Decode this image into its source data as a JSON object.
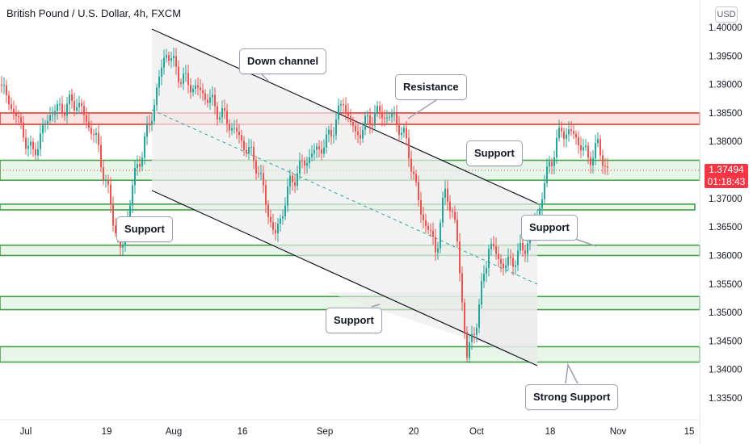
{
  "header": {
    "title": "British Pound / U.S. Dollar, 4h, FXCM",
    "currency_button": "USD"
  },
  "price_label": {
    "price": "1.37494",
    "countdown": "01:18:43",
    "color": "#f23645"
  },
  "annotations": {
    "down_channel": "Down channel",
    "resistance": "Resistance",
    "support_right_top": "Support",
    "support_left": "Support",
    "support_middle": "Support",
    "support_right": "Support",
    "strong_support": "Strong Support"
  },
  "colors": {
    "up": "#26a69a",
    "down": "#ef5350",
    "zone_green": "#43a047",
    "zone_red": "#e53935",
    "channel": "#131722"
  },
  "chart_data": {
    "type": "candlestick",
    "title": "British Pound / U.S. Dollar, 4h, FXCM",
    "ylim": [
      1.33,
      1.405
    ],
    "y_ticks": [
      "1.40000",
      "1.39500",
      "1.39000",
      "1.38500",
      "1.38000",
      "1.37500",
      "1.37000",
      "1.36500",
      "1.36000",
      "1.35500",
      "1.35000",
      "1.34500",
      "1.34000",
      "1.33500"
    ],
    "x_ticks": [
      "Jul",
      "19",
      "Aug",
      "16",
      "Sep",
      "20",
      "Oct",
      "18",
      "Nov",
      "15"
    ],
    "last_price": 1.37494,
    "approx_path": [
      {
        "x": "Jul 1",
        "y": 1.39
      },
      {
        "x": "Jul 5",
        "y": 1.384
      },
      {
        "x": "Jul 8",
        "y": 1.377
      },
      {
        "x": "Jul 12",
        "y": 1.388
      },
      {
        "x": "Jul 16",
        "y": 1.379
      },
      {
        "x": "Jul 20",
        "y": 1.362
      },
      {
        "x": "Jul 22",
        "y": 1.37
      },
      {
        "x": "Jul 26",
        "y": 1.383
      },
      {
        "x": "Jul 30",
        "y": 1.396
      },
      {
        "x": "Aug 3",
        "y": 1.39
      },
      {
        "x": "Aug 9",
        "y": 1.386
      },
      {
        "x": "Aug 13",
        "y": 1.382
      },
      {
        "x": "Aug 18",
        "y": 1.374
      },
      {
        "x": "Aug 20",
        "y": 1.362
      },
      {
        "x": "Aug 23",
        "y": 1.372
      },
      {
        "x": "Aug 27",
        "y": 1.376
      },
      {
        "x": "Sep 1",
        "y": 1.382
      },
      {
        "x": "Sep 3",
        "y": 1.387
      },
      {
        "x": "Sep 7",
        "y": 1.381
      },
      {
        "x": "Sep 10",
        "y": 1.384
      },
      {
        "x": "Sep 14",
        "y": 1.385
      },
      {
        "x": "Sep 17",
        "y": 1.38
      },
      {
        "x": "Sep 21",
        "y": 1.368
      },
      {
        "x": "Sep 23",
        "y": 1.362
      },
      {
        "x": "Sep 26",
        "y": 1.372
      },
      {
        "x": "Sep 29",
        "y": 1.355
      },
      {
        "x": "Oct 1",
        "y": 1.342
      },
      {
        "x": "Oct 3",
        "y": 1.354
      },
      {
        "x": "Oct 7",
        "y": 1.362
      },
      {
        "x": "Oct 11",
        "y": 1.36
      },
      {
        "x": "Oct 14",
        "y": 1.366
      },
      {
        "x": "Oct 18",
        "y": 1.376
      },
      {
        "x": "Oct 20",
        "y": 1.383
      },
      {
        "x": "Oct 24",
        "y": 1.378
      },
      {
        "x": "Oct 27",
        "y": 1.3749
      }
    ]
  }
}
